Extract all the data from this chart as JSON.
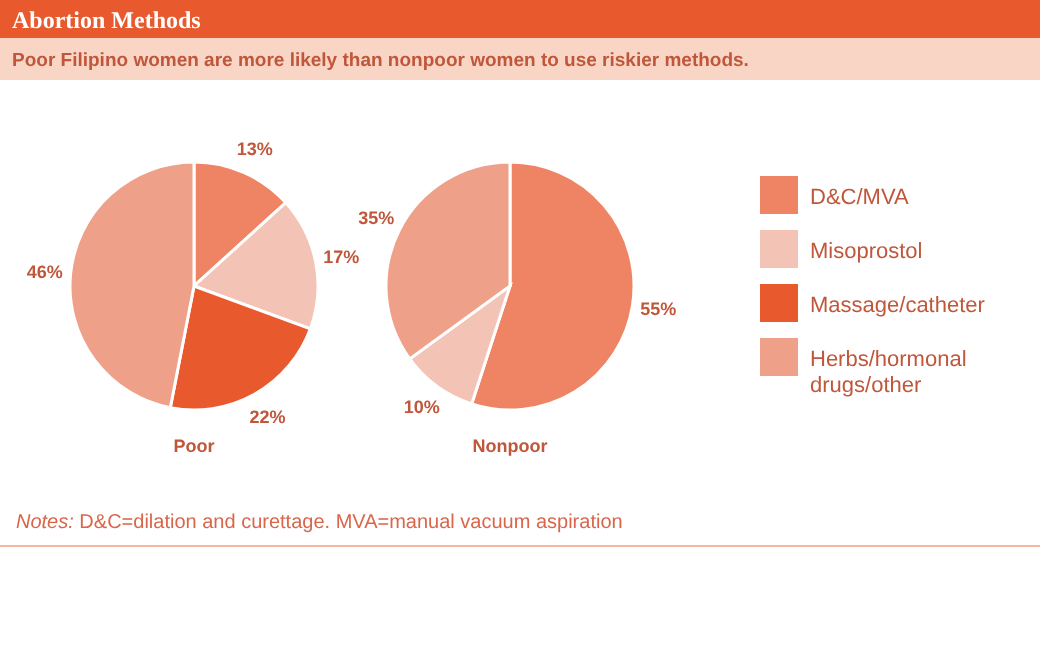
{
  "chart_data": [
    {
      "type": "pie",
      "title": "Abortion Methods",
      "subtitle": "Poor Filipino women are more likely than nonpoor women to use riskier methods.",
      "xlabel": "Poor",
      "categories": [
        "D&C/MVA",
        "Misoprostol",
        "Massage/catheter",
        "Herbs/hormonal drugs/other"
      ],
      "values": [
        13,
        17,
        22,
        46
      ],
      "value_labels": [
        "13%",
        "17%",
        "22%",
        "46%"
      ],
      "colors": [
        "#ee8463",
        "#f3c4b5",
        "#e85a2e",
        "#efa088"
      ],
      "legend": "right",
      "annotations": [
        "Notes: D&C=dilation and curettage. MVA=manual vacuum aspiration"
      ]
    },
    {
      "type": "pie",
      "xlabel": "Nonpoor",
      "categories": [
        null,
        null,
        null
      ],
      "values": [
        55,
        10,
        35
      ],
      "value_labels": [
        "55%",
        "10%",
        "35%"
      ],
      "colors": [
        "#ee8463",
        "#f3c4b5",
        "#efa088"
      ]
    }
  ]
}
